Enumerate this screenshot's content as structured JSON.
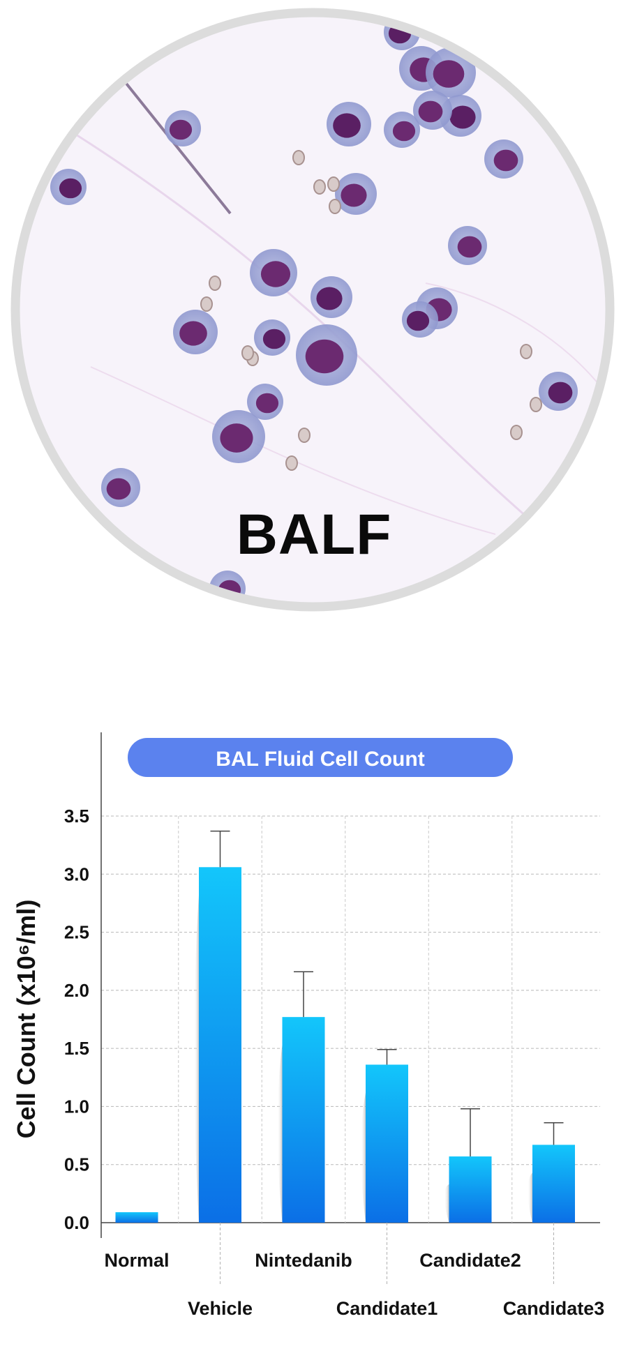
{
  "image_label": "BALF",
  "chart_data": {
    "type": "bar",
    "title": "BAL Fluid Cell Count",
    "ylabel": "Cell Count (x10⁶/ml)",
    "categories": [
      "Normal",
      "Vehicle",
      "Nintedanib",
      "Candidate1",
      "Candidate2",
      "Candidate3"
    ],
    "values": [
      0.09,
      3.06,
      1.77,
      1.36,
      0.57,
      0.67
    ],
    "error_upper": [
      0.0,
      0.31,
      0.39,
      0.13,
      0.41,
      0.19
    ],
    "ylim": [
      0,
      3.5
    ],
    "yticks": [
      "0.0",
      "0.5",
      "1.0",
      "1.5",
      "2.0",
      "2.5",
      "3.0",
      "3.5"
    ],
    "grid": true,
    "colors": {
      "bar_top": "#13c6fb",
      "bar_bottom": "#0b6fe6",
      "title_pill": "#5b82ee",
      "grid": "#b8b8b8"
    }
  }
}
